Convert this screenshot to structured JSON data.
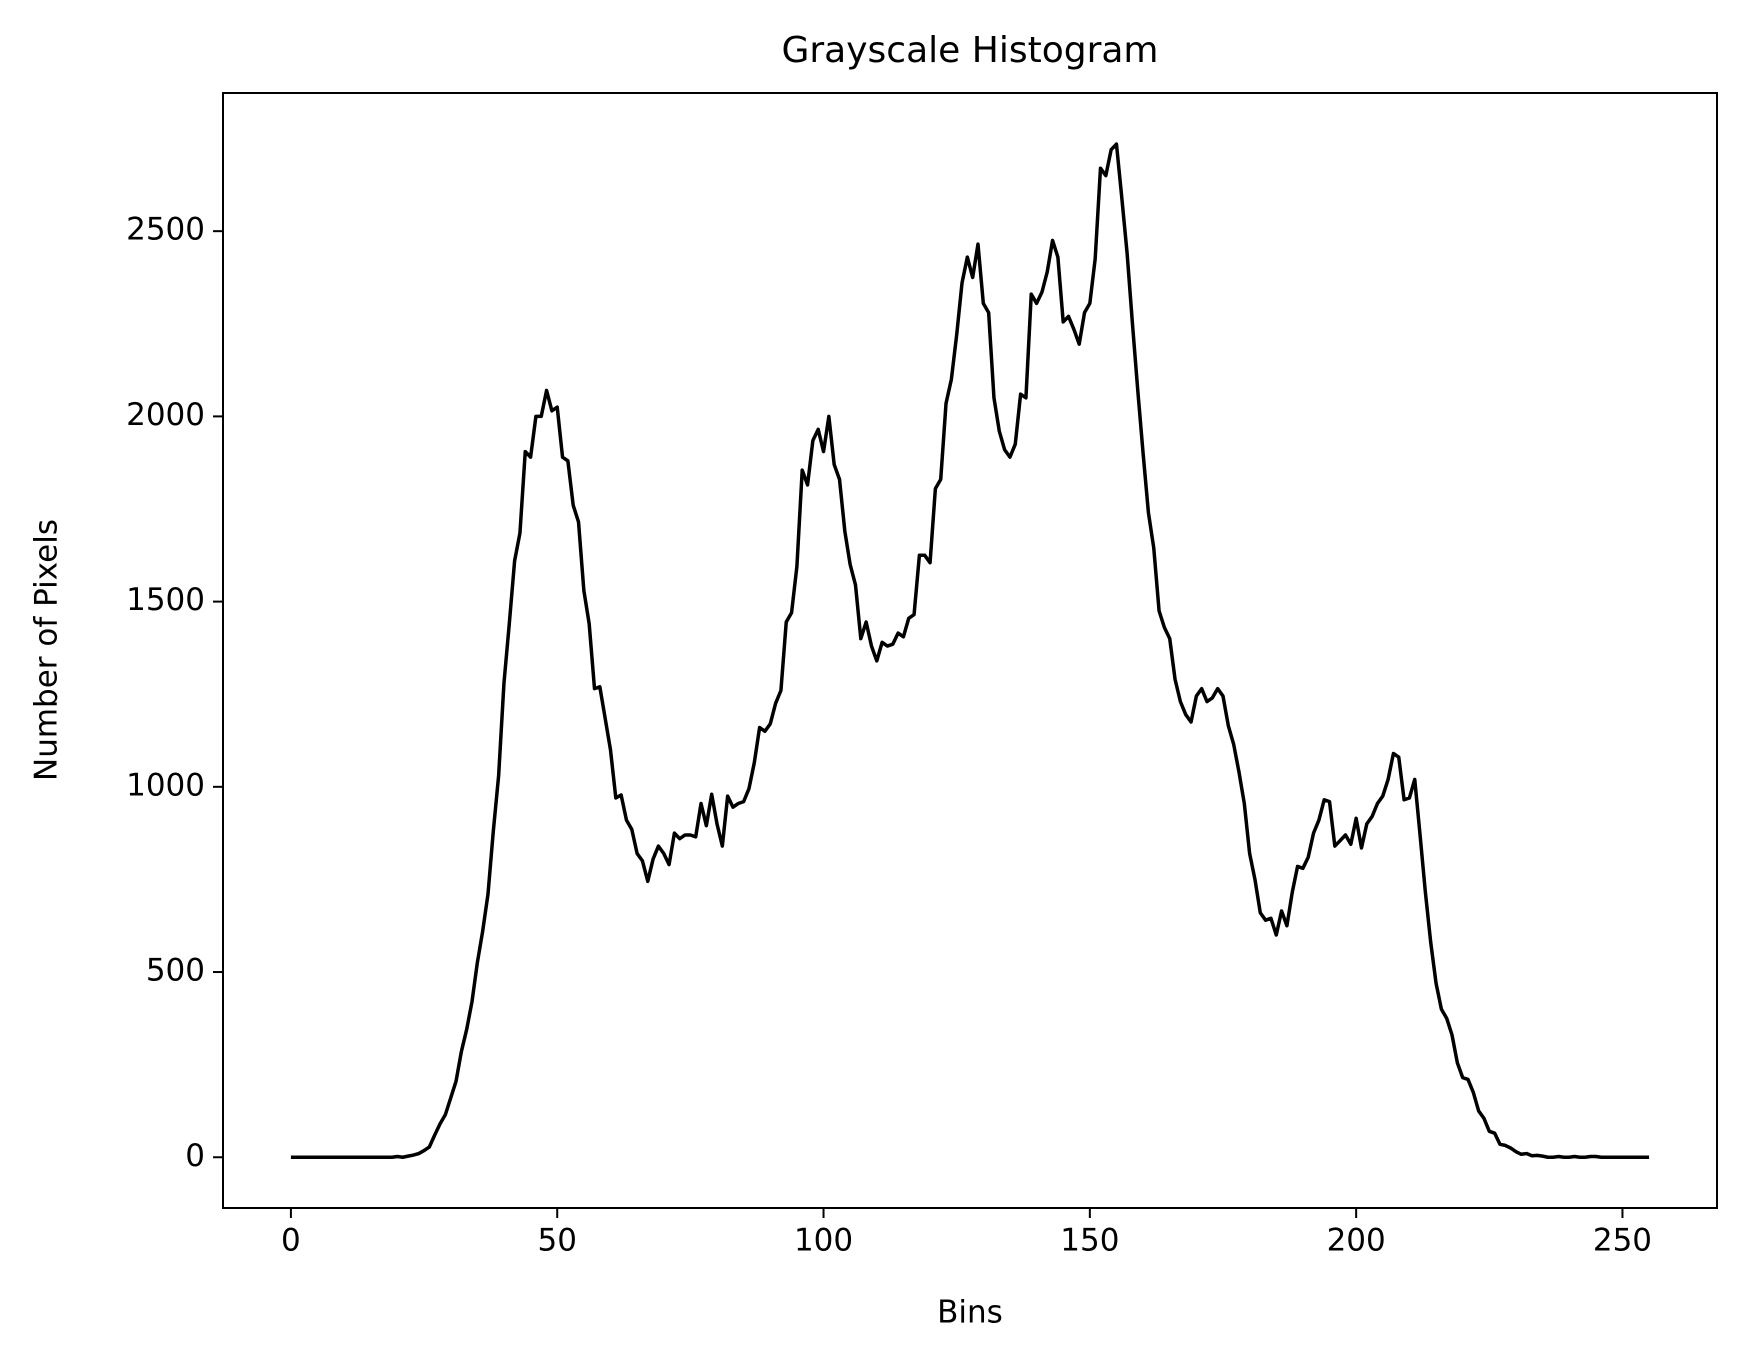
{
  "chart_data": {
    "type": "line",
    "title": "Grayscale Histogram",
    "x_label": "Bins",
    "y_label": "Number of Pixels",
    "color": "#000000",
    "x": [
      0,
      1,
      2,
      3,
      4,
      5,
      6,
      7,
      8,
      9,
      10,
      11,
      12,
      13,
      14,
      15,
      16,
      17,
      18,
      19,
      20,
      21,
      22,
      23,
      24,
      25,
      26,
      27,
      28,
      29,
      30,
      31,
      32,
      33,
      34,
      35,
      36,
      37,
      38,
      39,
      40,
      41,
      42,
      43,
      44,
      45,
      46,
      47,
      48,
      49,
      50,
      51,
      52,
      53,
      54,
      55,
      56,
      57,
      58,
      59,
      60,
      61,
      62,
      63,
      64,
      65,
      66,
      67,
      68,
      69,
      70,
      71,
      72,
      73,
      74,
      75,
      76,
      77,
      78,
      79,
      80,
      81,
      82,
      83,
      84,
      85,
      86,
      87,
      88,
      89,
      90,
      91,
      92,
      93,
      94,
      95,
      96,
      97,
      98,
      99,
      100,
      101,
      102,
      103,
      104,
      105,
      106,
      107,
      108,
      109,
      110,
      111,
      112,
      113,
      114,
      115,
      116,
      117,
      118,
      119,
      120,
      121,
      122,
      123,
      124,
      125,
      126,
      127,
      128,
      129,
      130,
      131,
      132,
      133,
      134,
      135,
      136,
      137,
      138,
      139,
      140,
      141,
      142,
      143,
      144,
      145,
      146,
      147,
      148,
      149,
      150,
      151,
      152,
      153,
      154,
      155,
      156,
      157,
      158,
      159,
      160,
      161,
      162,
      163,
      164,
      165,
      166,
      167,
      168,
      169,
      170,
      171,
      172,
      173,
      174,
      175,
      176,
      177,
      178,
      179,
      180,
      181,
      182,
      183,
      184,
      185,
      186,
      187,
      188,
      189,
      190,
      191,
      192,
      193,
      194,
      195,
      196,
      197,
      198,
      199,
      200,
      201,
      202,
      203,
      204,
      205,
      206,
      207,
      208,
      209,
      210,
      211,
      212,
      213,
      214,
      215,
      216,
      217,
      218,
      219,
      220,
      221,
      222,
      223,
      224,
      225,
      226,
      227,
      228,
      229,
      230,
      231,
      232,
      233,
      234,
      235,
      236,
      237,
      238,
      239,
      240,
      241,
      242,
      243,
      244,
      245,
      246,
      247,
      248,
      249,
      250,
      251,
      252,
      253,
      254,
      255
    ],
    "values": [
      0,
      0,
      0,
      0,
      0,
      0,
      0,
      0,
      0,
      0,
      0,
      0,
      0,
      0,
      0,
      0,
      0,
      0,
      0,
      0,
      2,
      0,
      3,
      6,
      10,
      18,
      28,
      60,
      90,
      115,
      160,
      205,
      285,
      345,
      420,
      525,
      610,
      710,
      880,
      1030,
      1280,
      1440,
      1610,
      1685,
      1905,
      1890,
      2000,
      2000,
      2070,
      2015,
      2025,
      1890,
      1880,
      1760,
      1715,
      1530,
      1440,
      1265,
      1270,
      1185,
      1100,
      970,
      978,
      910,
      885,
      820,
      800,
      745,
      805,
      840,
      820,
      790,
      875,
      860,
      870,
      870,
      865,
      955,
      895,
      980,
      900,
      840,
      975,
      945,
      955,
      960,
      995,
      1065,
      1160,
      1150,
      1170,
      1225,
      1260,
      1445,
      1470,
      1595,
      1855,
      1815,
      1935,
      1965,
      1905,
      2000,
      1870,
      1830,
      1690,
      1600,
      1545,
      1400,
      1445,
      1380,
      1340,
      1390,
      1380,
      1385,
      1415,
      1405,
      1455,
      1465,
      1625,
      1625,
      1605,
      1805,
      1830,
      2035,
      2100,
      2220,
      2360,
      2430,
      2375,
      2465,
      2305,
      2280,
      2050,
      1960,
      1910,
      1890,
      1925,
      2060,
      2050,
      2330,
      2305,
      2335,
      2390,
      2475,
      2430,
      2255,
      2270,
      2235,
      2195,
      2280,
      2305,
      2425,
      2670,
      2650,
      2720,
      2735,
      2590,
      2440,
      2250,
      2070,
      1900,
      1740,
      1645,
      1475,
      1430,
      1400,
      1290,
      1230,
      1195,
      1175,
      1245,
      1265,
      1230,
      1240,
      1265,
      1245,
      1165,
      1115,
      1040,
      955,
      820,
      750,
      660,
      640,
      645,
      600,
      665,
      625,
      715,
      785,
      780,
      810,
      875,
      910,
      965,
      960,
      840,
      855,
      870,
      845,
      915,
      835,
      900,
      920,
      955,
      975,
      1020,
      1090,
      1080,
      965,
      970,
      1020,
      870,
      715,
      580,
      470,
      400,
      375,
      330,
      255,
      215,
      210,
      175,
      125,
      105,
      70,
      65,
      35,
      32,
      25,
      15,
      8,
      10,
      4,
      5,
      3,
      0,
      0,
      2,
      0,
      0,
      2,
      0,
      0,
      2,
      2,
      0,
      0,
      0,
      0,
      0,
      0,
      0,
      0,
      0,
      0
    ],
    "xlim": [
      -12.75,
      267.75
    ],
    "ylim": [
      -137,
      2873
    ],
    "xticks": [
      0,
      50,
      100,
      150,
      200,
      250
    ],
    "yticks": [
      0,
      500,
      1000,
      1500,
      2000,
      2500
    ],
    "grid": false
  }
}
